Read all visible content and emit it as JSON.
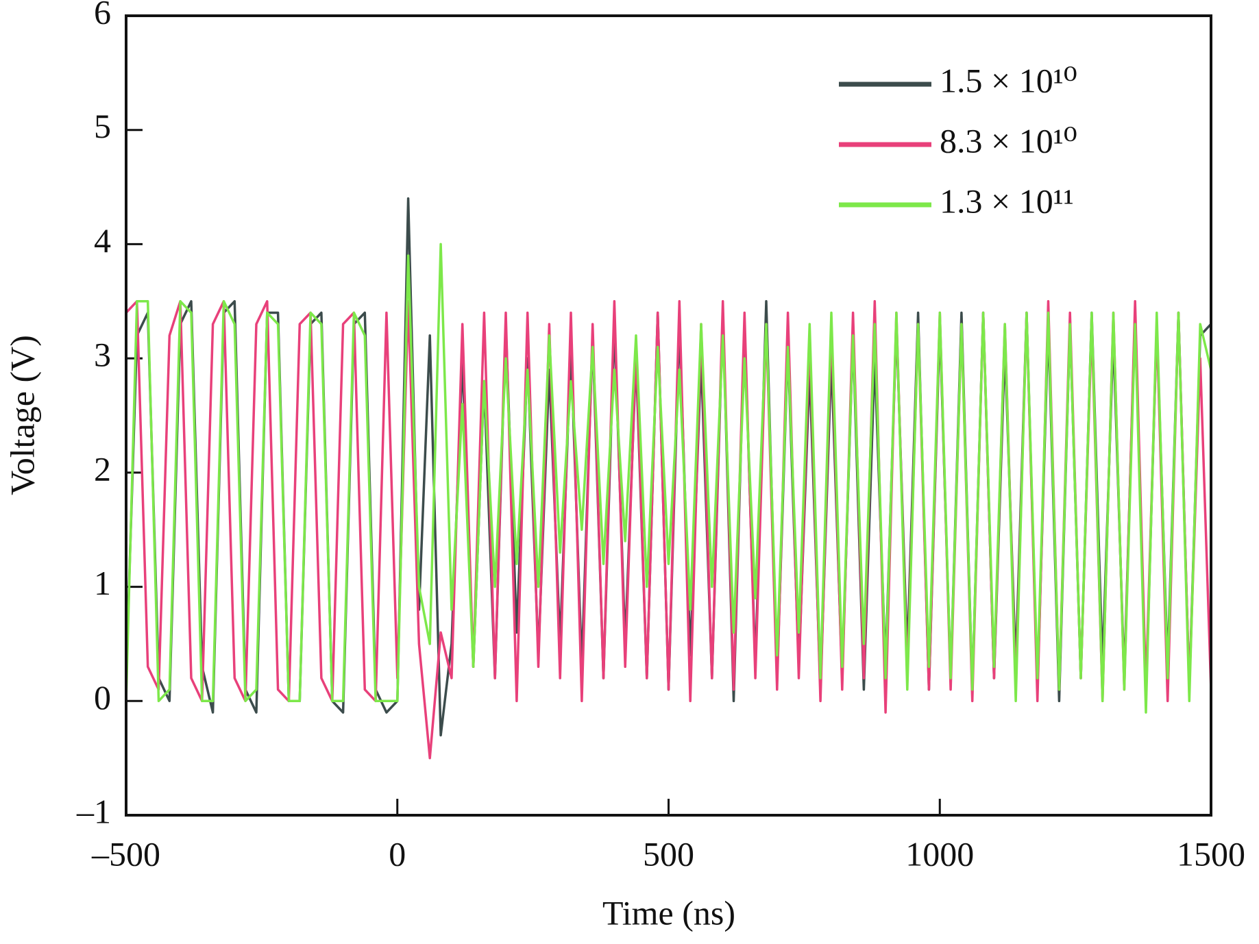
{
  "chart_data": {
    "type": "line",
    "xlabel": "Time (ns)",
    "ylabel": "Voltage (V)",
    "x": [
      -500,
      -480,
      -460,
      -440,
      -420,
      -400,
      -380,
      -360,
      -340,
      -320,
      -300,
      -280,
      -260,
      -240,
      -220,
      -200,
      -180,
      -160,
      -140,
      -120,
      -100,
      -80,
      -60,
      -40,
      -20,
      0,
      20,
      40,
      60,
      80,
      100,
      120,
      140,
      160,
      180,
      200,
      220,
      240,
      260,
      280,
      300,
      320,
      340,
      360,
      380,
      400,
      420,
      440,
      460,
      480,
      500,
      520,
      540,
      560,
      580,
      600,
      620,
      640,
      660,
      680,
      700,
      720,
      740,
      760,
      780,
      800,
      820,
      840,
      860,
      880,
      900,
      920,
      940,
      960,
      980,
      1000,
      1020,
      1040,
      1060,
      1080,
      1100,
      1120,
      1140,
      1160,
      1180,
      1200,
      1220,
      1240,
      1260,
      1280,
      1300,
      1320,
      1340,
      1360,
      1380,
      1400,
      1420,
      1440,
      1460,
      1480,
      1500
    ],
    "series": [
      {
        "name": "1.5 × 10¹⁰",
        "color": "#3c4c4c",
        "values": [
          0.2,
          3.2,
          3.4,
          0.2,
          0.0,
          3.3,
          3.5,
          0.3,
          -0.1,
          3.4,
          3.5,
          0.1,
          -0.1,
          3.4,
          3.4,
          0.0,
          0.0,
          3.3,
          3.4,
          0.0,
          -0.1,
          3.3,
          3.4,
          0.1,
          -0.1,
          0.0,
          4.4,
          0.8,
          3.2,
          -0.3,
          0.5,
          3.0,
          0.3,
          2.8,
          0.2,
          3.3,
          0.6,
          3.0,
          0.4,
          2.9,
          0.5,
          3.1,
          0.3,
          3.2,
          0.2,
          3.3,
          0.5,
          3.0,
          0.2,
          3.4,
          0.1,
          3.3,
          0.4,
          3.0,
          0.2,
          3.4,
          0.0,
          3.3,
          0.3,
          3.5,
          0.2,
          3.1,
          0.3,
          2.9,
          0.1,
          3.0,
          0.2,
          3.2,
          0.1,
          3.0,
          0.3,
          3.3,
          0.4,
          3.4,
          0.1,
          3.3,
          0.2,
          3.4,
          0.1,
          3.4,
          0.2,
          3.1,
          0.3,
          3.4,
          0.1,
          3.3,
          0.0,
          3.3,
          0.2,
          3.4,
          0.3,
          3.2,
          0.2,
          3.4,
          0.0,
          3.3,
          0.3,
          3.4,
          0.1,
          3.2,
          3.3
        ]
      },
      {
        "name": "8.3 × 10¹⁰",
        "color": "#e8407a",
        "values": [
          3.4,
          3.5,
          0.3,
          0.1,
          3.2,
          3.5,
          0.2,
          0.0,
          3.3,
          3.5,
          0.2,
          0.0,
          3.3,
          3.5,
          0.1,
          0.0,
          3.3,
          3.4,
          0.2,
          0.0,
          3.3,
          3.4,
          0.1,
          0.0,
          3.4,
          0.2,
          3.5,
          0.5,
          -0.5,
          0.6,
          0.2,
          3.3,
          0.3,
          3.4,
          0.2,
          3.4,
          0.0,
          3.4,
          0.3,
          3.3,
          0.2,
          3.4,
          0.0,
          3.3,
          0.2,
          3.5,
          0.3,
          3.1,
          0.2,
          3.4,
          0.1,
          3.5,
          0.0,
          3.3,
          0.2,
          3.5,
          0.1,
          3.4,
          0.2,
          3.3,
          0.1,
          3.4,
          0.2,
          3.2,
          0.0,
          3.3,
          0.1,
          3.4,
          0.2,
          3.5,
          -0.1,
          3.4,
          0.2,
          3.3,
          0.1,
          3.4,
          0.1,
          3.3,
          0.0,
          3.4,
          0.2,
          3.3,
          0.1,
          3.4,
          0.0,
          3.5,
          0.1,
          3.4,
          0.2,
          3.3,
          0.0,
          3.4,
          0.1,
          3.5,
          0.1,
          3.3,
          0.0,
          3.4,
          0.1,
          3.0,
          0.1
        ]
      },
      {
        "name": "1.3 × 10¹¹",
        "color": "#7de84a",
        "values": [
          0.0,
          3.5,
          3.5,
          0.0,
          0.1,
          3.5,
          3.4,
          0.0,
          0.0,
          3.5,
          3.3,
          0.0,
          0.1,
          3.4,
          3.3,
          0.0,
          0.0,
          3.4,
          3.3,
          0.0,
          0.0,
          3.4,
          3.2,
          0.0,
          0.0,
          0.0,
          3.9,
          1.0,
          0.5,
          4.0,
          0.8,
          2.6,
          0.3,
          2.8,
          1.0,
          3.0,
          1.2,
          2.9,
          1.0,
          3.2,
          1.3,
          2.8,
          1.5,
          3.1,
          1.2,
          2.9,
          1.4,
          3.2,
          1.0,
          3.1,
          1.2,
          2.9,
          0.8,
          3.3,
          1.0,
          3.2,
          0.6,
          3.0,
          0.9,
          3.3,
          0.4,
          3.1,
          0.6,
          3.3,
          0.2,
          3.4,
          0.3,
          3.2,
          0.5,
          3.3,
          0.2,
          3.4,
          0.1,
          3.3,
          0.3,
          3.4,
          0.2,
          3.3,
          0.1,
          3.4,
          0.3,
          3.3,
          0.0,
          3.4,
          0.2,
          3.4,
          0.1,
          3.3,
          0.2,
          3.4,
          0.0,
          3.4,
          0.1,
          3.3,
          -0.1,
          3.4,
          0.2,
          3.4,
          0.0,
          3.3,
          2.9
        ]
      }
    ],
    "xlim": [
      -500,
      1500
    ],
    "xticks": [
      {
        "value": -500,
        "label": "–500"
      },
      0,
      500,
      1000,
      1500
    ],
    "ylim": [
      -1,
      6
    ],
    "yticks": [
      {
        "value": -1,
        "label": "–1"
      },
      0,
      1,
      2,
      3,
      4,
      5,
      6
    ],
    "legend": "upper right",
    "grid": false
  }
}
